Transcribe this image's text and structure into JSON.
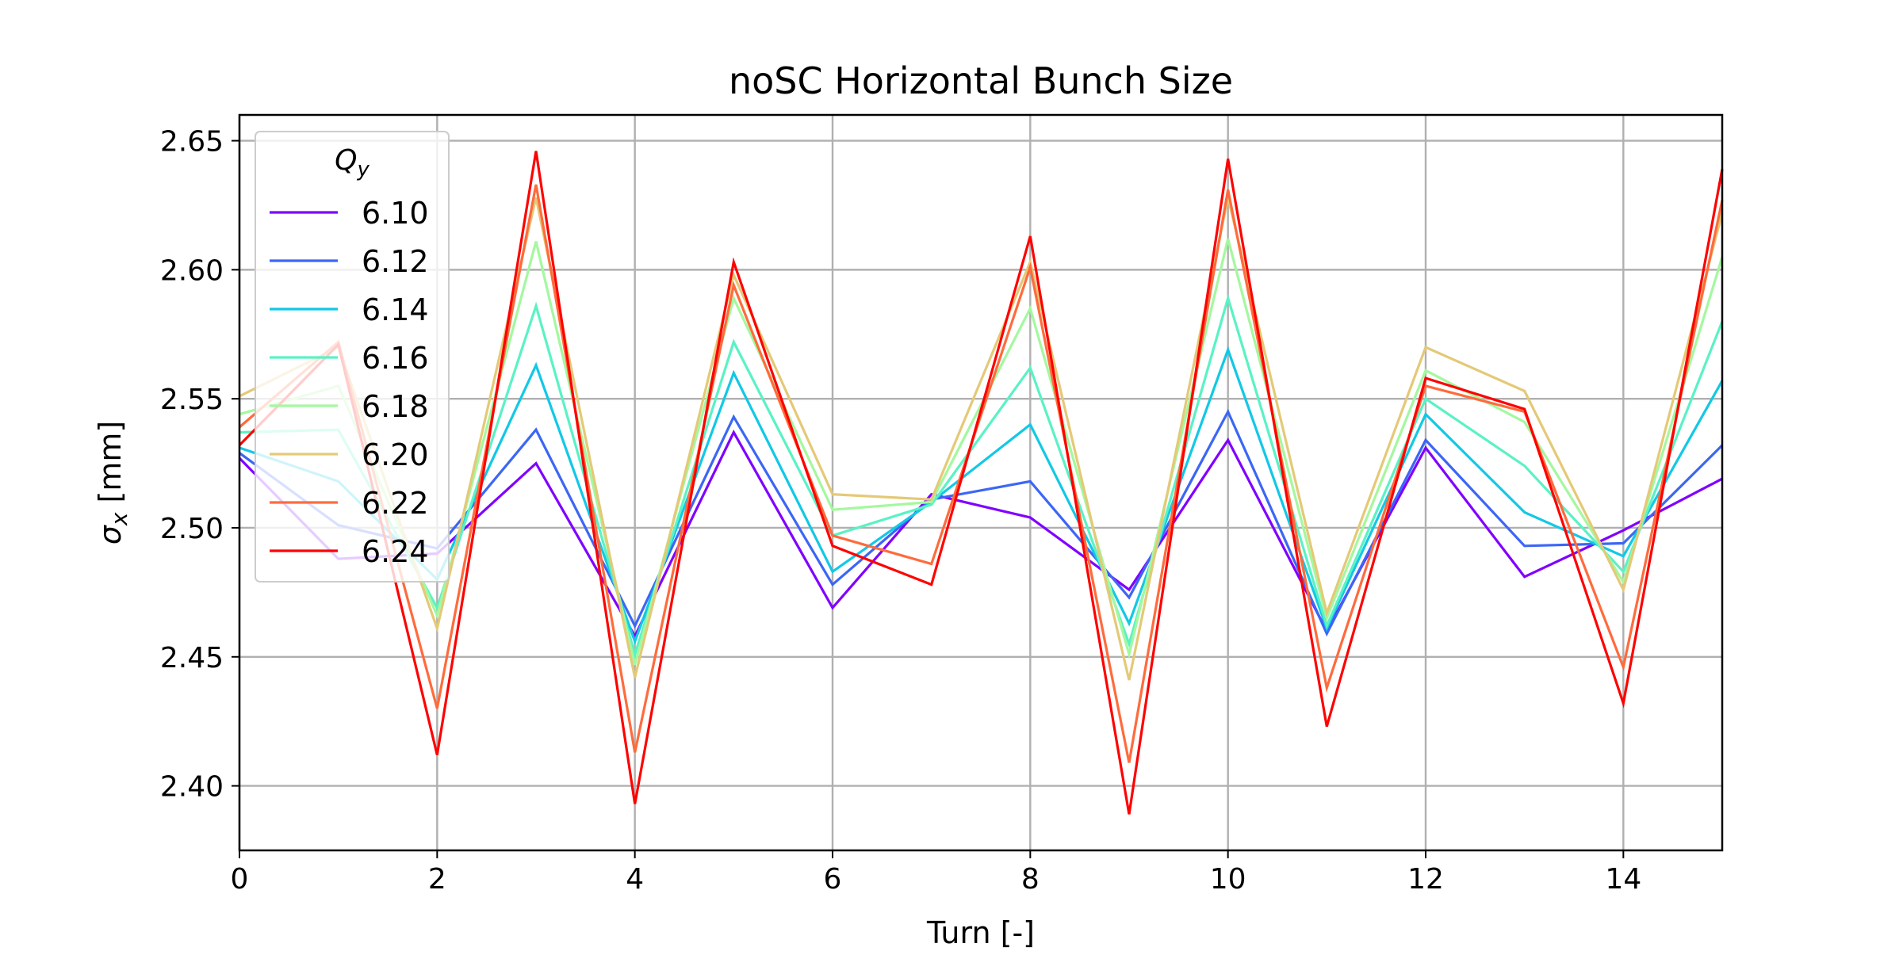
{
  "chart_data": {
    "type": "line",
    "title": "noSC Horizontal Bunch Size",
    "xlabel": "Turn [-]",
    "ylabel_symbol": "σ",
    "ylabel_subscript": "x",
    "ylabel_unit": " [mm]",
    "xlim": [
      0,
      15
    ],
    "ylim": [
      2.375,
      2.66
    ],
    "xticks": [
      0,
      2,
      4,
      6,
      8,
      10,
      12,
      14
    ],
    "yticks": [
      2.4,
      2.45,
      2.5,
      2.55,
      2.6,
      2.65
    ],
    "ytick_labels": [
      "2.40",
      "2.45",
      "2.50",
      "2.55",
      "2.60",
      "2.65"
    ],
    "grid": true,
    "legend": {
      "placement": "top-left",
      "title_symbol": "Q",
      "title_subscript": "y"
    },
    "x": [
      0,
      1,
      2,
      3,
      4,
      5,
      6,
      7,
      8,
      9,
      10,
      11,
      12,
      13,
      14,
      15
    ],
    "series": [
      {
        "name": "6.10",
        "color": "#8000ff",
        "values": [
          2.527,
          2.488,
          2.49,
          2.525,
          2.458,
          2.537,
          2.469,
          2.513,
          2.504,
          2.476,
          2.534,
          2.46,
          2.531,
          2.481,
          2.499,
          2.519
        ]
      },
      {
        "name": "6.12",
        "color": "#3c66f5",
        "values": [
          2.529,
          2.501,
          2.492,
          2.538,
          2.462,
          2.543,
          2.478,
          2.511,
          2.518,
          2.473,
          2.545,
          2.459,
          2.534,
          2.493,
          2.494,
          2.532
        ]
      },
      {
        "name": "6.14",
        "color": "#12c8e6",
        "values": [
          2.531,
          2.518,
          2.48,
          2.563,
          2.456,
          2.56,
          2.483,
          2.51,
          2.54,
          2.463,
          2.569,
          2.461,
          2.544,
          2.506,
          2.489,
          2.557
        ]
      },
      {
        "name": "6.16",
        "color": "#5af2c4",
        "values": [
          2.537,
          2.538,
          2.469,
          2.586,
          2.451,
          2.572,
          2.497,
          2.509,
          2.562,
          2.455,
          2.589,
          2.462,
          2.55,
          2.524,
          2.483,
          2.58
        ]
      },
      {
        "name": "6.18",
        "color": "#a4f89f",
        "values": [
          2.544,
          2.555,
          2.466,
          2.611,
          2.447,
          2.589,
          2.507,
          2.51,
          2.585,
          2.451,
          2.612,
          2.465,
          2.561,
          2.541,
          2.479,
          2.605
        ]
      },
      {
        "name": "6.20",
        "color": "#e4c977",
        "values": [
          2.551,
          2.57,
          2.461,
          2.628,
          2.442,
          2.598,
          2.513,
          2.511,
          2.603,
          2.441,
          2.628,
          2.467,
          2.57,
          2.553,
          2.476,
          2.622
        ]
      },
      {
        "name": "6.22",
        "color": "#ff6b3c",
        "values": [
          2.539,
          2.572,
          2.43,
          2.633,
          2.413,
          2.594,
          2.497,
          2.486,
          2.601,
          2.409,
          2.631,
          2.438,
          2.555,
          2.545,
          2.446,
          2.627
        ]
      },
      {
        "name": "6.24",
        "color": "#ff0000",
        "values": [
          2.532,
          2.571,
          2.412,
          2.646,
          2.393,
          2.603,
          2.493,
          2.478,
          2.613,
          2.389,
          2.643,
          2.423,
          2.558,
          2.546,
          2.432,
          2.639
        ]
      }
    ]
  }
}
